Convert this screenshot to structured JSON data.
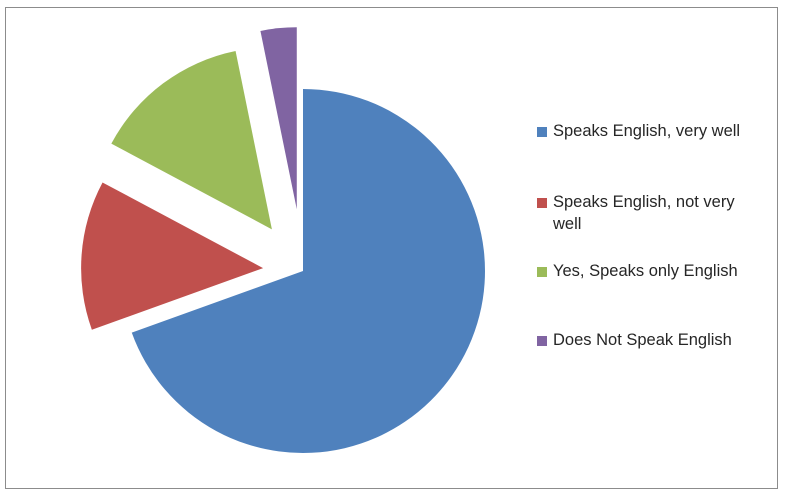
{
  "chart_data": {
    "type": "pie",
    "exploded": true,
    "categories": [
      "Speaks English, very well",
      "Speaks English, not very well",
      "Yes, Speaks only English",
      "Does Not Speak English"
    ],
    "values": [
      69.5,
      13.3,
      14.0,
      3.2
    ],
    "colors": [
      "#4f81bd",
      "#c0504d",
      "#9bbb59",
      "#8064a2"
    ],
    "legend_position": "right",
    "title": ""
  }
}
